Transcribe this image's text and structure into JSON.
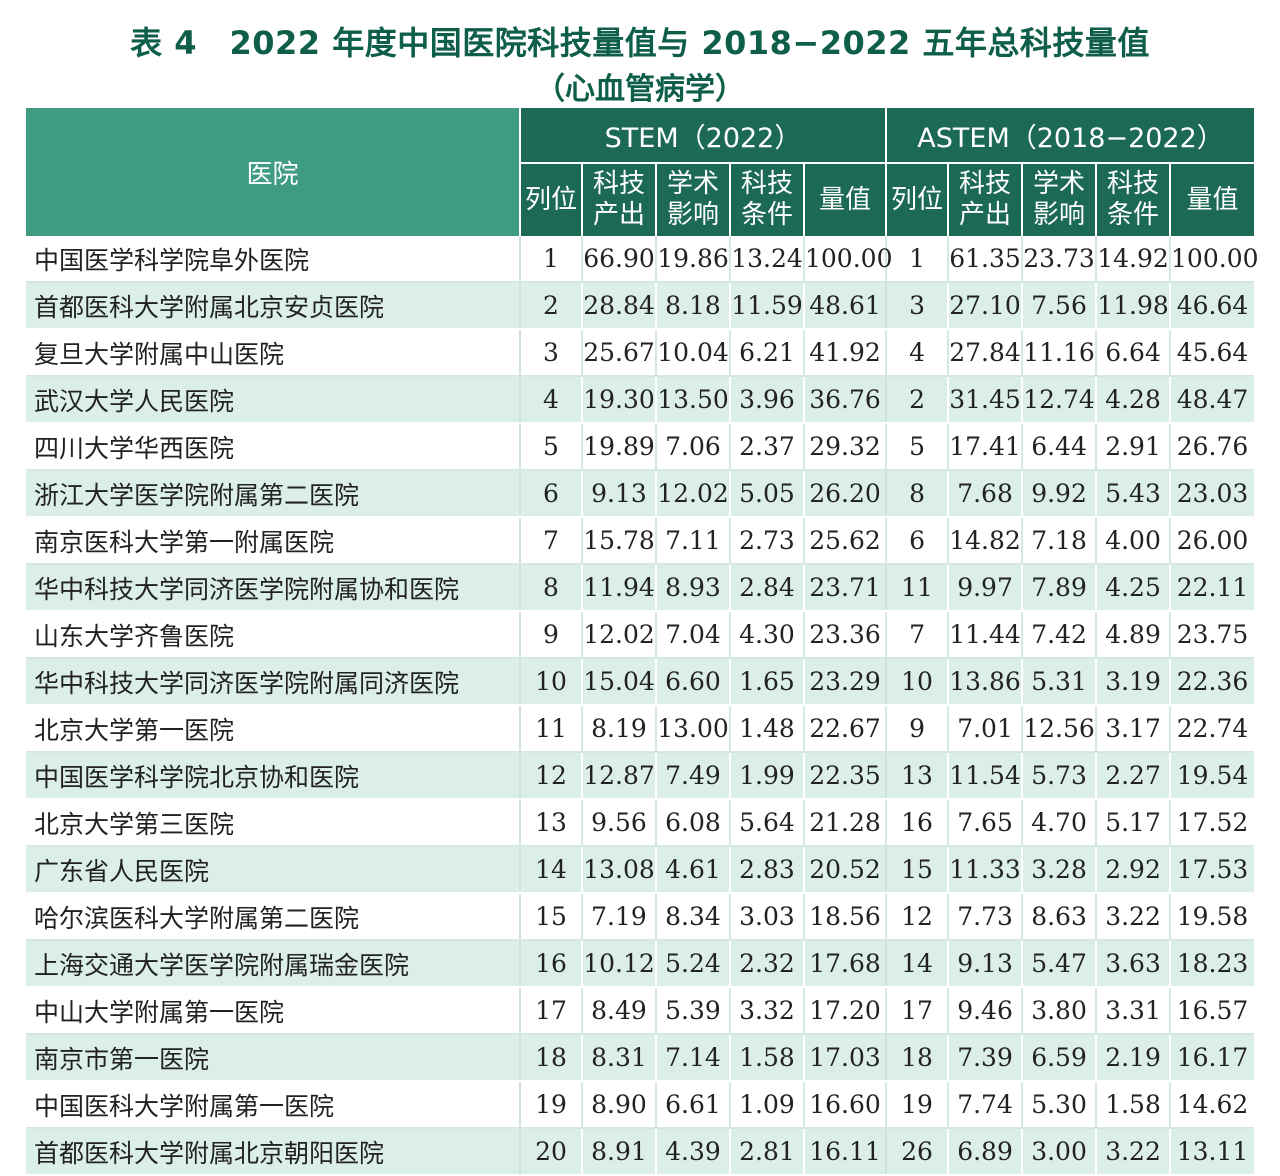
{
  "title": "表 4　2022 年度中国医院科技量值与 2018−2022 五年总科技量值",
  "subtitle": "（心血管病学）",
  "headers": {
    "hospital": "医院",
    "stem_group": "STEM（2022）",
    "astem_group": "ASTEM（2018−2022）",
    "sub": [
      "列位",
      "科技产出",
      "学术影响",
      "科技条件",
      "量值"
    ]
  },
  "colors": {
    "title": "#0e5e4a",
    "header_dark": "#1c6a55",
    "header_light": "#3f9c83",
    "row_alt": "#dcefe7"
  },
  "rows": [
    {
      "name": "中国医学科学院阜外医院",
      "stem": [
        "1",
        "66.90",
        "19.86",
        "13.24",
        "100.00"
      ],
      "astem": [
        "1",
        "61.35",
        "23.73",
        "14.92",
        "100.00"
      ]
    },
    {
      "name": "首都医科大学附属北京安贞医院",
      "stem": [
        "2",
        "28.84",
        "8.18",
        "11.59",
        "48.61"
      ],
      "astem": [
        "3",
        "27.10",
        "7.56",
        "11.98",
        "46.64"
      ]
    },
    {
      "name": "复旦大学附属中山医院",
      "stem": [
        "3",
        "25.67",
        "10.04",
        "6.21",
        "41.92"
      ],
      "astem": [
        "4",
        "27.84",
        "11.16",
        "6.64",
        "45.64"
      ]
    },
    {
      "name": "武汉大学人民医院",
      "stem": [
        "4",
        "19.30",
        "13.50",
        "3.96",
        "36.76"
      ],
      "astem": [
        "2",
        "31.45",
        "12.74",
        "4.28",
        "48.47"
      ]
    },
    {
      "name": "四川大学华西医院",
      "stem": [
        "5",
        "19.89",
        "7.06",
        "2.37",
        "29.32"
      ],
      "astem": [
        "5",
        "17.41",
        "6.44",
        "2.91",
        "26.76"
      ]
    },
    {
      "name": "浙江大学医学院附属第二医院",
      "stem": [
        "6",
        "9.13",
        "12.02",
        "5.05",
        "26.20"
      ],
      "astem": [
        "8",
        "7.68",
        "9.92",
        "5.43",
        "23.03"
      ]
    },
    {
      "name": "南京医科大学第一附属医院",
      "stem": [
        "7",
        "15.78",
        "7.11",
        "2.73",
        "25.62"
      ],
      "astem": [
        "6",
        "14.82",
        "7.18",
        "4.00",
        "26.00"
      ]
    },
    {
      "name": "华中科技大学同济医学院附属协和医院",
      "stem": [
        "8",
        "11.94",
        "8.93",
        "2.84",
        "23.71"
      ],
      "astem": [
        "11",
        "9.97",
        "7.89",
        "4.25",
        "22.11"
      ]
    },
    {
      "name": "山东大学齐鲁医院",
      "stem": [
        "9",
        "12.02",
        "7.04",
        "4.30",
        "23.36"
      ],
      "astem": [
        "7",
        "11.44",
        "7.42",
        "4.89",
        "23.75"
      ]
    },
    {
      "name": "华中科技大学同济医学院附属同济医院",
      "stem": [
        "10",
        "15.04",
        "6.60",
        "1.65",
        "23.29"
      ],
      "astem": [
        "10",
        "13.86",
        "5.31",
        "3.19",
        "22.36"
      ]
    },
    {
      "name": "北京大学第一医院",
      "stem": [
        "11",
        "8.19",
        "13.00",
        "1.48",
        "22.67"
      ],
      "astem": [
        "9",
        "7.01",
        "12.56",
        "3.17",
        "22.74"
      ]
    },
    {
      "name": "中国医学科学院北京协和医院",
      "stem": [
        "12",
        "12.87",
        "7.49",
        "1.99",
        "22.35"
      ],
      "astem": [
        "13",
        "11.54",
        "5.73",
        "2.27",
        "19.54"
      ]
    },
    {
      "name": "北京大学第三医院",
      "stem": [
        "13",
        "9.56",
        "6.08",
        "5.64",
        "21.28"
      ],
      "astem": [
        "16",
        "7.65",
        "4.70",
        "5.17",
        "17.52"
      ]
    },
    {
      "name": "广东省人民医院",
      "stem": [
        "14",
        "13.08",
        "4.61",
        "2.83",
        "20.52"
      ],
      "astem": [
        "15",
        "11.33",
        "3.28",
        "2.92",
        "17.53"
      ]
    },
    {
      "name": "哈尔滨医科大学附属第二医院",
      "stem": [
        "15",
        "7.19",
        "8.34",
        "3.03",
        "18.56"
      ],
      "astem": [
        "12",
        "7.73",
        "8.63",
        "3.22",
        "19.58"
      ]
    },
    {
      "name": "上海交通大学医学院附属瑞金医院",
      "stem": [
        "16",
        "10.12",
        "5.24",
        "2.32",
        "17.68"
      ],
      "astem": [
        "14",
        "9.13",
        "5.47",
        "3.63",
        "18.23"
      ]
    },
    {
      "name": "中山大学附属第一医院",
      "stem": [
        "17",
        "8.49",
        "5.39",
        "3.32",
        "17.20"
      ],
      "astem": [
        "17",
        "9.46",
        "3.80",
        "3.31",
        "16.57"
      ]
    },
    {
      "name": "南京市第一医院",
      "stem": [
        "18",
        "8.31",
        "7.14",
        "1.58",
        "17.03"
      ],
      "astem": [
        "18",
        "7.39",
        "6.59",
        "2.19",
        "16.17"
      ]
    },
    {
      "name": "中国医科大学附属第一医院",
      "stem": [
        "19",
        "8.90",
        "6.61",
        "1.09",
        "16.60"
      ],
      "astem": [
        "19",
        "7.74",
        "5.30",
        "1.58",
        "14.62"
      ]
    },
    {
      "name": "首都医科大学附属北京朝阳医院",
      "stem": [
        "20",
        "8.91",
        "4.39",
        "2.81",
        "16.11"
      ],
      "astem": [
        "26",
        "6.89",
        "3.00",
        "3.22",
        "13.11"
      ]
    }
  ]
}
